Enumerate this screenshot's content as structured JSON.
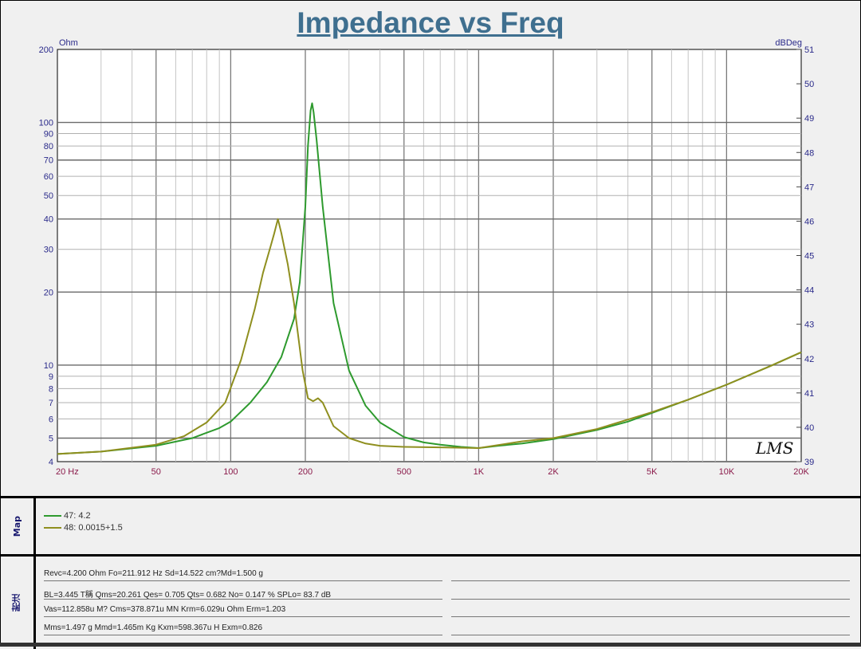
{
  "chart_data": {
    "type": "line",
    "title": "Impedance vs Freq",
    "left_axis_unit": "Ohm",
    "right_axis_unit": "dBDeg",
    "x_scale": "log",
    "y_scale": "log",
    "xlim": [
      20,
      20000
    ],
    "ylim": [
      4,
      200
    ],
    "y2lim": [
      39,
      51
    ],
    "grid": true,
    "x_tick_labels": [
      {
        "v": 20,
        "t": "20  Hz"
      },
      {
        "v": 50,
        "t": "50"
      },
      {
        "v": 100,
        "t": "100"
      },
      {
        "v": 200,
        "t": "200"
      },
      {
        "v": 500,
        "t": "500"
      },
      {
        "v": 1000,
        "t": "1K"
      },
      {
        "v": 2000,
        "t": "2K"
      },
      {
        "v": 5000,
        "t": "5K"
      },
      {
        "v": 10000,
        "t": "10K"
      },
      {
        "v": 20000,
        "t": "20K"
      }
    ],
    "y_tick_labels": [
      {
        "v": 200,
        "t": "200"
      },
      {
        "v": 100,
        "t": "100"
      },
      {
        "v": 90,
        "t": "90"
      },
      {
        "v": 80,
        "t": "80"
      },
      {
        "v": 70,
        "t": "70"
      },
      {
        "v": 60,
        "t": "60"
      },
      {
        "v": 50,
        "t": "50"
      },
      {
        "v": 40,
        "t": "40"
      },
      {
        "v": 30,
        "t": "30"
      },
      {
        "v": 20,
        "t": "20"
      },
      {
        "v": 10,
        "t": "10"
      },
      {
        "v": 9,
        "t": "9"
      },
      {
        "v": 8,
        "t": "8"
      },
      {
        "v": 7,
        "t": "7"
      },
      {
        "v": 6,
        "t": "6"
      },
      {
        "v": 5,
        "t": "5"
      },
      {
        "v": 4,
        "t": "4"
      }
    ],
    "y2_tick_labels": [
      "51",
      "50",
      "49",
      "48",
      "47",
      "46",
      "45",
      "44",
      "43",
      "42",
      "41",
      "40",
      "39"
    ],
    "series": [
      {
        "name": "47: 4.2",
        "color": "#2e9a2e",
        "points": [
          [
            20,
            4.3
          ],
          [
            30,
            4.4
          ],
          [
            50,
            4.65
          ],
          [
            70,
            5.0
          ],
          [
            90,
            5.5
          ],
          [
            100,
            5.85
          ],
          [
            120,
            7.0
          ],
          [
            140,
            8.5
          ],
          [
            160,
            10.8
          ],
          [
            180,
            15.5
          ],
          [
            190,
            22
          ],
          [
            200,
            45
          ],
          [
            205,
            80
          ],
          [
            210,
            112
          ],
          [
            213,
            120
          ],
          [
            216,
            110
          ],
          [
            222,
            85
          ],
          [
            235,
            45
          ],
          [
            260,
            18
          ],
          [
            300,
            9.5
          ],
          [
            350,
            6.8
          ],
          [
            400,
            5.8
          ],
          [
            500,
            5.05
          ],
          [
            600,
            4.8
          ],
          [
            700,
            4.7
          ],
          [
            850,
            4.6
          ],
          [
            1000,
            4.55
          ],
          [
            1200,
            4.65
          ],
          [
            1500,
            4.75
          ],
          [
            2000,
            4.95
          ],
          [
            3000,
            5.4
          ],
          [
            4000,
            5.85
          ],
          [
            5000,
            6.35
          ],
          [
            7000,
            7.2
          ],
          [
            10000,
            8.3
          ],
          [
            15000,
            9.9
          ],
          [
            20000,
            11.3
          ]
        ]
      },
      {
        "name": "48: 0.0015+1.5",
        "color": "#8f8f1f",
        "points": [
          [
            20,
            4.3
          ],
          [
            30,
            4.4
          ],
          [
            50,
            4.7
          ],
          [
            65,
            5.1
          ],
          [
            80,
            5.8
          ],
          [
            95,
            7.0
          ],
          [
            110,
            10.5
          ],
          [
            125,
            17
          ],
          [
            135,
            24
          ],
          [
            145,
            31
          ],
          [
            150,
            35
          ],
          [
            155,
            40
          ],
          [
            160,
            35
          ],
          [
            170,
            26
          ],
          [
            180,
            18
          ],
          [
            195,
            9.5
          ],
          [
            205,
            7.3
          ],
          [
            215,
            7.1
          ],
          [
            225,
            7.3
          ],
          [
            235,
            7.0
          ],
          [
            260,
            5.6
          ],
          [
            300,
            5.0
          ],
          [
            350,
            4.75
          ],
          [
            400,
            4.65
          ],
          [
            500,
            4.6
          ],
          [
            700,
            4.58
          ],
          [
            1000,
            4.55
          ],
          [
            1500,
            4.85
          ],
          [
            2000,
            5.0
          ],
          [
            3000,
            5.45
          ],
          [
            5000,
            6.4
          ],
          [
            7000,
            7.2
          ],
          [
            10000,
            8.3
          ],
          [
            15000,
            9.9
          ],
          [
            20000,
            11.3
          ]
        ]
      }
    ]
  },
  "watermark": "LMS",
  "legend": {
    "panel_label": "Map",
    "entries": [
      {
        "label": "47: 4.2",
        "color": "#2e9a2e"
      },
      {
        "label": "48: 0.0015+1.5",
        "color": "#8f8f1f"
      }
    ]
  },
  "notes": {
    "panel_label": "附注",
    "lines": [
      "Revc=4.200 Ohm  Fo=211.912 Hz  Sd=14.522 cm?Md=1.500 g",
      "BL=3.445 T稱  Qms=20.261  Qes= 0.705  Qts= 0.682  No= 0.147 %  SPLo= 83.7 dB",
      "Vas=112.858u M? Cms=378.871u MN  Krm=6.029u Ohm  Erm=1.203",
      "Mms=1.497 g  Mmd=1.465m Kg  Kxm=598.367u H  Exm=0.826"
    ]
  }
}
